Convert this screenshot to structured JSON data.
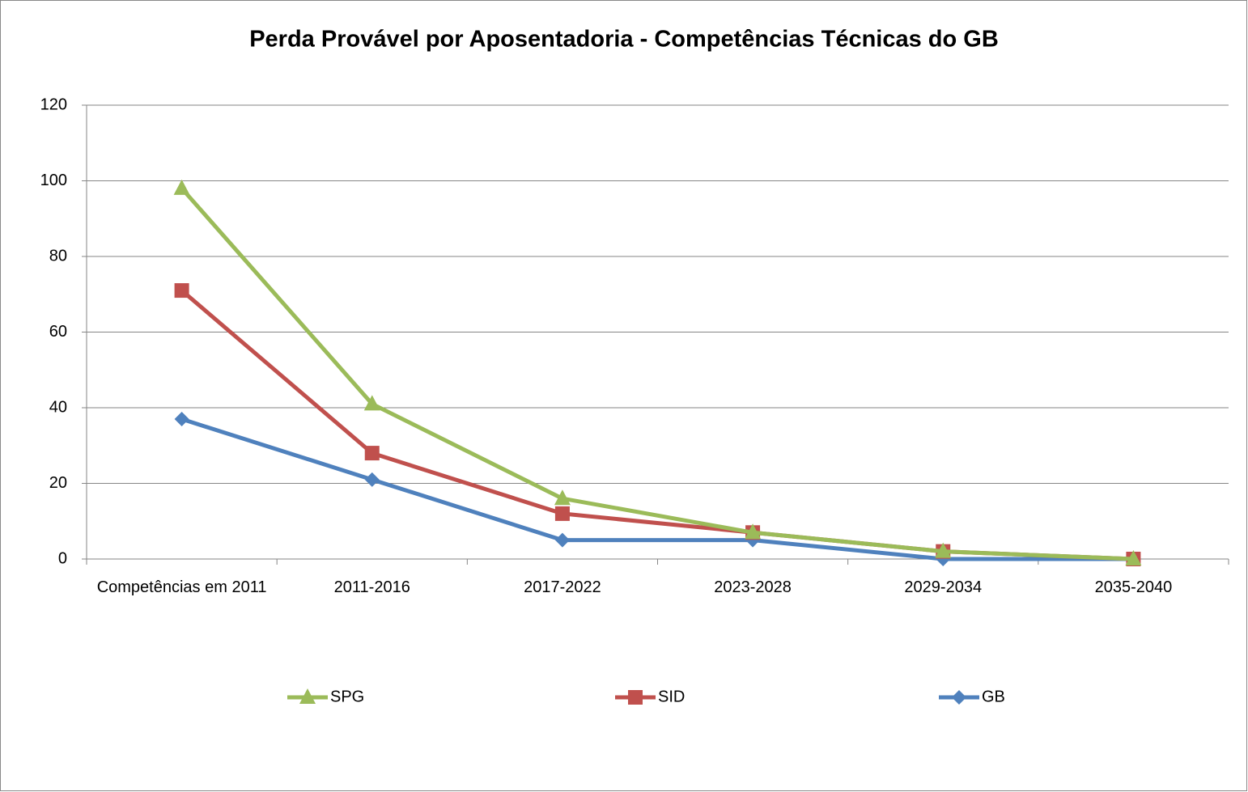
{
  "chart_data": {
    "type": "line",
    "title": "Perda Provável por Aposentadoria - Competências Técnicas do GB",
    "categories": [
      "Competências em 2011",
      "2011-2016",
      "2017-2022",
      "2023-2028",
      "2029-2034",
      "2035-2040"
    ],
    "series": [
      {
        "name": "SPG",
        "color": "#9bbb59",
        "marker": "triangle",
        "values": [
          98,
          41,
          16,
          7,
          2,
          0
        ]
      },
      {
        "name": "SID",
        "color": "#c0504d",
        "marker": "square",
        "values": [
          71,
          28,
          12,
          7,
          2,
          0
        ]
      },
      {
        "name": "GB",
        "color": "#4f81bd",
        "marker": "diamond",
        "values": [
          37,
          21,
          5,
          5,
          0,
          0
        ]
      }
    ],
    "ylim": [
      0,
      120
    ],
    "yticks": [
      0,
      20,
      40,
      60,
      80,
      100,
      120
    ],
    "grid": true,
    "legend": "bottom"
  }
}
